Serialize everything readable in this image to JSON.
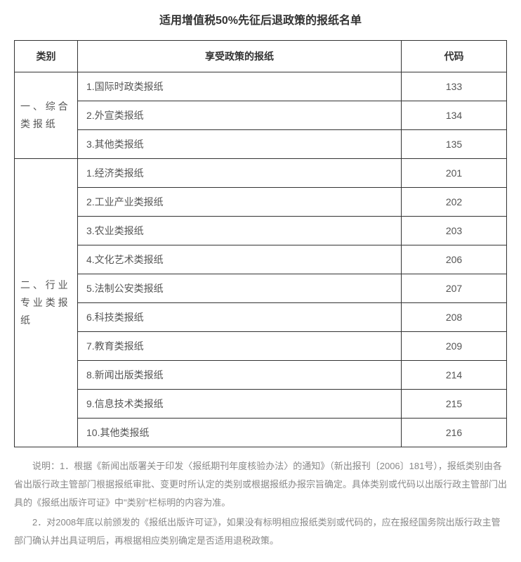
{
  "title": "适用增值税50%先征后退政策的报纸名单",
  "headers": {
    "category": "类别",
    "name": "享受政策的报纸",
    "code": "代码"
  },
  "groups": [
    {
      "category": "一 、 综 合 类 报 纸",
      "rows": [
        {
          "name": "1.国际时政类报纸",
          "code": "133"
        },
        {
          "name": "2.外宣类报纸",
          "code": "134"
        },
        {
          "name": "3.其他类报纸",
          "code": "135"
        }
      ]
    },
    {
      "category": "二 、 行 业 专 业 类 报 纸",
      "rows": [
        {
          "name": "1.经济类报纸",
          "code": "201"
        },
        {
          "name": "2.工业产业类报纸",
          "code": "202"
        },
        {
          "name": "3.农业类报纸",
          "code": "203"
        },
        {
          "name": "4.文化艺术类报纸",
          "code": "206"
        },
        {
          "name": "5.法制公安类报纸",
          "code": "207"
        },
        {
          "name": "6.科技类报纸",
          "code": "208"
        },
        {
          "name": "7.教育类报纸",
          "code": "209"
        },
        {
          "name": "8.新闻出版类报纸",
          "code": "214"
        },
        {
          "name": "9.信息技术类报纸",
          "code": "215"
        },
        {
          "name": "10.其他类报纸",
          "code": "216"
        }
      ]
    }
  ],
  "notes": [
    "说明：1．根据《新闻出版署关于印发〈报纸期刊年度核验办法〉的通知》（新出报刊〔2006〕181号），报纸类别由各省出版行政主管部门根据报纸审批、变更时所认定的类别或根据报纸办报宗旨确定。具体类别或代码以出版行政主管部门出具的《报纸出版许可证》中\"类别\"栏标明的内容为准。",
    "2．对2008年底以前颁发的《报纸出版许可证》，如果没有标明相应报纸类别或代码的，应在报经国务院出版行政主管部门确认并出具证明后，再根据相应类别确定是否适用退税政策。"
  ],
  "style": {
    "table_border_color": "#333333",
    "text_color": "#555555",
    "title_color": "#333333",
    "notes_color": "#888888",
    "background_color": "#ffffff",
    "title_fontsize": 16,
    "cell_fontsize": 14,
    "notes_fontsize": 13,
    "category_col_width": 90,
    "code_col_width": 150
  }
}
